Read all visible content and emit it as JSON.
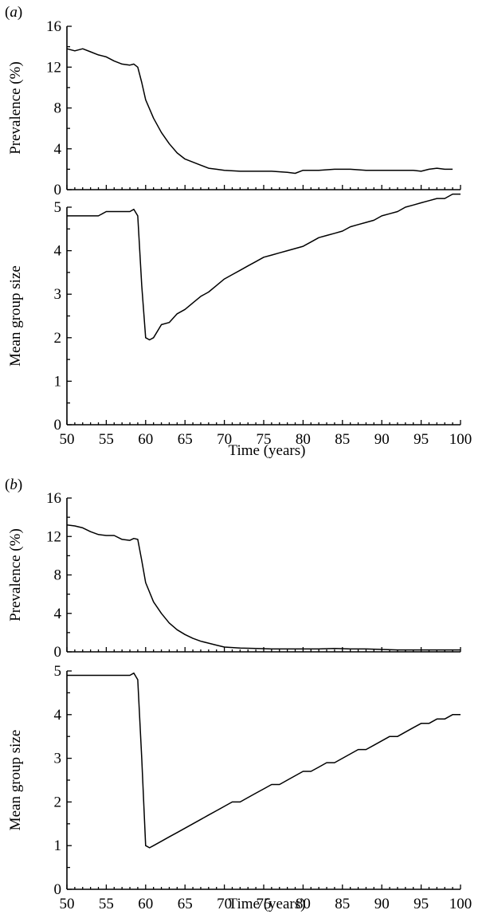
{
  "panels": [
    {
      "label": "(a)",
      "label_letter": "a"
    },
    {
      "label": "(b)",
      "label_letter": "b"
    }
  ],
  "chart_data": [
    {
      "type": "line",
      "panel": 0,
      "title": "",
      "xlabel": "",
      "ylabel": "Prevalence (%)",
      "xlim": [
        50,
        100
      ],
      "ylim": [
        0,
        16
      ],
      "xticks": [],
      "yticks": [
        0,
        4,
        8,
        12,
        16
      ],
      "x": [
        50,
        51,
        52,
        53,
        54,
        55,
        56,
        57,
        58,
        58.5,
        59,
        59.5,
        60,
        61,
        62,
        63,
        64,
        65,
        66,
        67,
        68,
        69,
        70,
        72,
        74,
        76,
        78,
        79,
        80,
        82,
        84,
        86,
        88,
        90,
        92,
        94,
        95,
        96,
        97,
        98,
        99
      ],
      "values": [
        13.8,
        13.6,
        13.8,
        13.5,
        13.2,
        13.0,
        12.6,
        12.3,
        12.2,
        12.3,
        12.0,
        10.5,
        8.8,
        7.0,
        5.6,
        4.5,
        3.6,
        3.0,
        2.7,
        2.4,
        2.1,
        2.0,
        1.9,
        1.8,
        1.8,
        1.8,
        1.7,
        1.6,
        1.9,
        1.9,
        2.0,
        2.0,
        1.9,
        1.9,
        1.9,
        1.9,
        1.8,
        2.0,
        2.1,
        2.0,
        2.0
      ]
    },
    {
      "type": "line",
      "panel": 0,
      "title": "",
      "xlabel": "Time (years)",
      "ylabel": "Mean group size",
      "xlim": [
        50,
        100
      ],
      "ylim": [
        0,
        5
      ],
      "xticks": [
        50,
        55,
        60,
        65,
        70,
        75,
        80,
        85,
        90,
        95,
        100
      ],
      "yticks": [
        0,
        1,
        2,
        3,
        4,
        5
      ],
      "x": [
        50,
        52,
        54,
        55,
        56,
        57,
        58,
        58.5,
        59,
        59.5,
        60,
        60.5,
        61,
        62,
        63,
        64,
        65,
        66,
        67,
        68,
        69,
        70,
        71,
        72,
        73,
        74,
        75,
        76,
        77,
        78,
        79,
        80,
        81,
        82,
        83,
        84,
        85,
        86,
        87,
        88,
        89,
        90,
        91,
        92,
        93,
        94,
        95,
        96,
        97,
        98,
        99,
        100
      ],
      "values": [
        4.8,
        4.8,
        4.8,
        4.9,
        4.9,
        4.9,
        4.9,
        4.95,
        4.8,
        3.2,
        2.0,
        1.95,
        2.0,
        2.3,
        2.35,
        2.55,
        2.65,
        2.8,
        2.95,
        3.05,
        3.2,
        3.35,
        3.45,
        3.55,
        3.65,
        3.75,
        3.85,
        3.9,
        3.95,
        4.0,
        4.05,
        4.1,
        4.2,
        4.3,
        4.35,
        4.4,
        4.45,
        4.55,
        4.6,
        4.65,
        4.7,
        4.8,
        4.85,
        4.9,
        5.0,
        5.05,
        5.1,
        5.15,
        5.2,
        5.2,
        5.3,
        5.3
      ]
    },
    {
      "type": "line",
      "panel": 1,
      "title": "",
      "xlabel": "",
      "ylabel": "Prevalence (%)",
      "xlim": [
        50,
        100
      ],
      "ylim": [
        0,
        16
      ],
      "xticks": [],
      "yticks": [
        0,
        4,
        8,
        12,
        16
      ],
      "x": [
        50,
        51,
        52,
        53,
        54,
        55,
        56,
        57,
        58,
        58.5,
        59,
        59.5,
        60,
        61,
        62,
        63,
        64,
        65,
        66,
        67,
        68,
        69,
        70,
        72,
        74,
        76,
        78,
        80,
        82,
        84,
        86,
        88,
        90,
        92,
        94,
        96,
        98,
        100
      ],
      "values": [
        13.2,
        13.1,
        12.9,
        12.5,
        12.2,
        12.1,
        12.1,
        11.7,
        11.6,
        11.8,
        11.7,
        9.5,
        7.2,
        5.2,
        4.0,
        3.0,
        2.3,
        1.8,
        1.4,
        1.1,
        0.9,
        0.7,
        0.5,
        0.4,
        0.35,
        0.3,
        0.3,
        0.3,
        0.3,
        0.35,
        0.3,
        0.3,
        0.25,
        0.2,
        0.2,
        0.2,
        0.2,
        0.2
      ]
    },
    {
      "type": "line",
      "panel": 1,
      "title": "",
      "xlabel": "Time (years)",
      "ylabel": "Mean group size",
      "xlim": [
        50,
        100
      ],
      "ylim": [
        0,
        5
      ],
      "xticks": [
        50,
        55,
        60,
        65,
        70,
        75,
        80,
        85,
        90,
        95,
        100
      ],
      "yticks": [
        0,
        1,
        2,
        3,
        4,
        5
      ],
      "x": [
        50,
        52,
        54,
        56,
        58,
        58.5,
        59,
        59.5,
        60,
        60.5,
        61,
        62,
        63,
        64,
        65,
        66,
        67,
        68,
        69,
        70,
        71,
        72,
        73,
        74,
        75,
        76,
        77,
        78,
        79,
        80,
        81,
        82,
        83,
        84,
        85,
        86,
        87,
        88,
        89,
        90,
        91,
        92,
        93,
        94,
        95,
        96,
        97,
        98,
        99,
        100
      ],
      "values": [
        4.9,
        4.9,
        4.9,
        4.9,
        4.9,
        4.95,
        4.8,
        3.0,
        1.0,
        0.95,
        1.0,
        1.1,
        1.2,
        1.3,
        1.4,
        1.5,
        1.6,
        1.7,
        1.8,
        1.9,
        2.0,
        2.0,
        2.1,
        2.2,
        2.3,
        2.4,
        2.4,
        2.5,
        2.6,
        2.7,
        2.7,
        2.8,
        2.9,
        2.9,
        3.0,
        3.1,
        3.2,
        3.2,
        3.3,
        3.4,
        3.5,
        3.5,
        3.6,
        3.7,
        3.8,
        3.8,
        3.9,
        3.9,
        4.0,
        4.0
      ]
    }
  ]
}
